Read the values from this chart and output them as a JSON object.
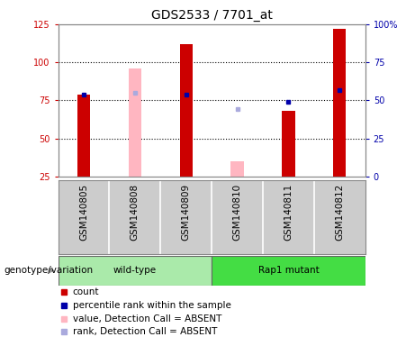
{
  "title": "GDS2533 / 7701_at",
  "samples": [
    "GSM140805",
    "GSM140808",
    "GSM140809",
    "GSM140810",
    "GSM140811",
    "GSM140812"
  ],
  "count_values": [
    79,
    null,
    112,
    null,
    68,
    122
  ],
  "count_absent_values": [
    null,
    96,
    null,
    35,
    null,
    null
  ],
  "rank_values": [
    54,
    null,
    54,
    null,
    49,
    57
  ],
  "rank_absent_values": [
    null,
    55,
    null,
    44,
    null,
    null
  ],
  "left_ylim": [
    25,
    125
  ],
  "left_yticks": [
    25,
    50,
    75,
    100,
    125
  ],
  "right_ylim": [
    0,
    100
  ],
  "right_yticks": [
    0,
    25,
    50,
    75,
    100
  ],
  "right_yticklabels": [
    "0",
    "25",
    "50",
    "75",
    "100%"
  ],
  "hlines": [
    50,
    75,
    100
  ],
  "bar_width": 0.25,
  "count_color": "#CC0000",
  "count_absent_color": "#FFB6C1",
  "rank_color": "#0000AA",
  "rank_absent_color": "#AAAADD",
  "bg_color": "#FFFFFF",
  "label_fontsize": 7.5,
  "title_fontsize": 10,
  "tick_fontsize": 7,
  "legend_fontsize": 7.5,
  "axis_color_left": "#CC0000",
  "axis_color_right": "#0000AA",
  "wild_type_indices": [
    0,
    1,
    2
  ],
  "rap1_indices": [
    3,
    4,
    5
  ],
  "group_color_wt": "#98E898",
  "group_color_rap1": "#33CC33"
}
